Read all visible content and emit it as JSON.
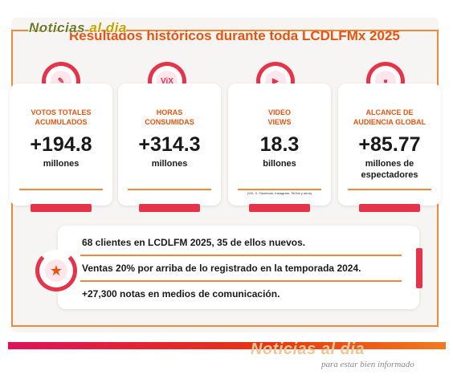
{
  "logo_top": {
    "part1": "Noticias ",
    "part2": "al dia"
  },
  "title": "Resultados históricos durante toda LCDLFMx 2025",
  "cards": [
    {
      "icon": "ballot-icon",
      "glyph": "✎",
      "label_line1": "VOTOS TOTALES",
      "label_line2": "ACUMULADOS",
      "value": "+194.8",
      "unit_line1": "millones",
      "unit_line2": "",
      "note": ""
    },
    {
      "icon": "vix-logo-icon",
      "glyph": "ViX",
      "label_line1": "HORAS",
      "label_line2": "CONSUMIDAS",
      "value": "+314.3",
      "unit_line1": "millones",
      "unit_line2": "",
      "note": ""
    },
    {
      "icon": "youtube-icon",
      "glyph": "▶",
      "label_line1": "VIDEO",
      "label_line2": "VIEWS",
      "value": "18.3",
      "unit_line1": "billones",
      "unit_line2": "",
      "note": "(ViX, X, Facebook, Instagram, TikTok y otros)"
    },
    {
      "icon": "audience-icon",
      "glyph": "●",
      "label_line1": "ALCANCE DE",
      "label_line2": "AUDIENCIA GLOBAL",
      "value": "+85.77",
      "unit_line1": "millones de",
      "unit_line2": "espectadores",
      "note": ""
    }
  ],
  "facts": [
    "68 clientes en LCDLFM 2025, 35 de ellos nuevos.",
    "Ventas 20% por arriba de lo registrado en la temporada 2024.",
    "+27,300 notas en medios de comunicación."
  ],
  "logo_bottom": {
    "name": "Noticias al dia",
    "tagline": "para estar bien informado"
  },
  "colors": {
    "accent": "#e8540f",
    "brand_red": "#e5334a",
    "rule": "#f08a3a"
  }
}
